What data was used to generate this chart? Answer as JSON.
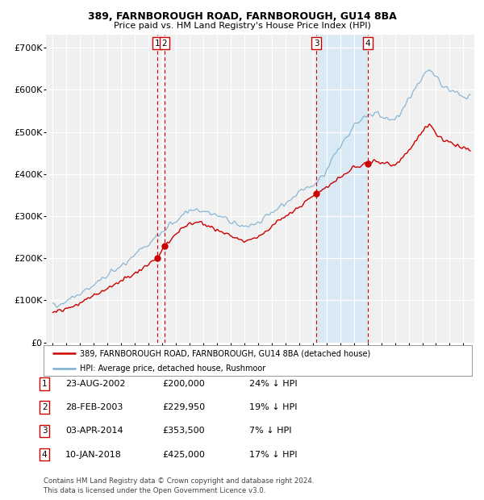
{
  "title1": "389, FARNBOROUGH ROAD, FARNBOROUGH, GU14 8BA",
  "title2": "Price paid vs. HM Land Registry's House Price Index (HPI)",
  "ylabel_ticks": [
    "£0",
    "£100K",
    "£200K",
    "£300K",
    "£400K",
    "£500K",
    "£600K",
    "£700K"
  ],
  "ytick_vals": [
    0,
    100000,
    200000,
    300000,
    400000,
    500000,
    600000,
    700000
  ],
  "ylim": [
    0,
    730000
  ],
  "xlim_start": 1994.5,
  "xlim_end": 2025.8,
  "sale_dates_dec": [
    2002.641,
    2003.162,
    2014.253,
    2018.027
  ],
  "sale_prices": [
    200000,
    229950,
    353500,
    425000
  ],
  "sale_labels": [
    "1",
    "2",
    "3",
    "4"
  ],
  "legend_label_red": "389, FARNBOROUGH ROAD, FARNBOROUGH, GU14 8BA (detached house)",
  "legend_label_blue": "HPI: Average price, detached house, Rushmoor",
  "table_rows": [
    {
      "num": "1",
      "date": "23-AUG-2002",
      "price": "£200,000",
      "hpi": "24% ↓ HPI"
    },
    {
      "num": "2",
      "date": "28-FEB-2003",
      "price": "£229,950",
      "hpi": "19% ↓ HPI"
    },
    {
      "num": "3",
      "date": "03-APR-2014",
      "price": "£353,500",
      "hpi": "7% ↓ HPI"
    },
    {
      "num": "4",
      "date": "10-JAN-2018",
      "price": "£425,000",
      "hpi": "17% ↓ HPI"
    }
  ],
  "footnote1": "Contains HM Land Registry data © Crown copyright and database right 2024.",
  "footnote2": "This data is licensed under the Open Government Licence v3.0.",
  "red_color": "#cc0000",
  "blue_color": "#7aadcf",
  "shade_color": "#daeaf5",
  "bg_color": "#f0f0f0",
  "chart_bg": "#f0f0f0",
  "grid_color": "#ffffff",
  "legend_border": "#aaaaaa"
}
